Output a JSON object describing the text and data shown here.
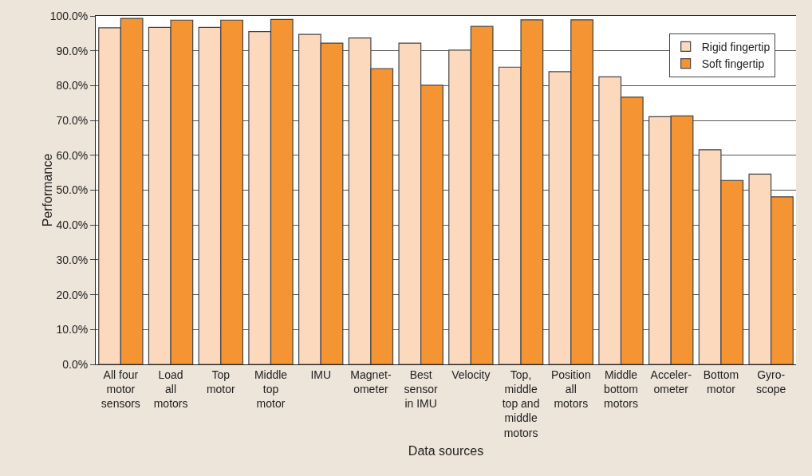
{
  "chart_data": {
    "type": "bar",
    "xlabel": "Data sources",
    "ylabel": "Performance",
    "categories": [
      "All four\nmotor\nsensors",
      "Load\nall\nmotors",
      "Top\nmotor",
      "Middle\ntop\nmotor",
      "IMU",
      "Magnet-\nometer",
      "Best\nsensor\nin IMU",
      "Velocity",
      "Top,\nmiddle\ntop and\nmiddle\nmotors",
      "Position\nall\nmotors",
      "Middle\nbottom\nmotors",
      "Acceler-\nometer",
      "Bottom\nmotor",
      "Gyro-\nscope"
    ],
    "series": [
      {
        "name": "Rigid fingertip",
        "color": "#fcd9bd",
        "values": [
          96.6,
          96.7,
          96.7,
          95.5,
          94.7,
          93.7,
          92.2,
          90.2,
          85.3,
          84.0,
          82.5,
          71.1,
          61.6,
          54.6
        ]
      },
      {
        "name": "Soft fingertip",
        "color": "#f49433",
        "values": [
          99.3,
          98.8,
          98.8,
          99.0,
          92.2,
          84.9,
          80.1,
          97.0,
          98.9,
          98.9,
          76.7,
          71.3,
          52.8,
          48.1
        ]
      }
    ],
    "ylim": [
      0,
      100
    ],
    "yticks": [
      {
        "value": 0,
        "label": "0.0%"
      },
      {
        "value": 10,
        "label": "10.0%"
      },
      {
        "value": 20,
        "label": "20.0%"
      },
      {
        "value": 30,
        "label": "30.0%"
      },
      {
        "value": 40,
        "label": "40.0%"
      },
      {
        "value": 50,
        "label": "50.0%"
      },
      {
        "value": 60,
        "label": "60.0%"
      },
      {
        "value": 70,
        "label": "70.0%"
      },
      {
        "value": 80,
        "label": "80.0%"
      },
      {
        "value": 90,
        "label": "90.0%"
      },
      {
        "value": 100,
        "label": "100.0%"
      }
    ],
    "grid": "y",
    "legend": "top right"
  }
}
